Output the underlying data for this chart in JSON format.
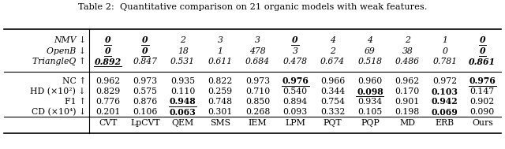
{
  "title": "Table 2:  Quantitative comparison on 21 organic models with weak features.",
  "columns": [
    "",
    "CVT",
    "LpCVT",
    "QEM",
    "SMS",
    "IEM",
    "LPM",
    "PQT",
    "PQP",
    "MD",
    "ERB",
    "Ours"
  ],
  "rows": [
    {
      "label": "CD (×10⁴) ↓",
      "values": [
        "0.201",
        "0.106",
        "0.063",
        "0.301",
        "0.268",
        "0.093",
        "0.332",
        "0.105",
        "0.198",
        "0.069",
        "0.090"
      ],
      "bold": [
        false,
        false,
        true,
        false,
        false,
        false,
        false,
        false,
        false,
        true,
        false
      ],
      "underline": [
        false,
        false,
        true,
        false,
        false,
        false,
        false,
        false,
        false,
        false,
        false
      ],
      "italic": false
    },
    {
      "label": "F1 ↑",
      "values": [
        "0.776",
        "0.876",
        "0.948",
        "0.748",
        "0.850",
        "0.894",
        "0.754",
        "0.934",
        "0.901",
        "0.942",
        "0.902"
      ],
      "bold": [
        false,
        false,
        true,
        false,
        false,
        false,
        false,
        false,
        false,
        true,
        false
      ],
      "underline": [
        false,
        false,
        true,
        false,
        false,
        false,
        false,
        false,
        false,
        false,
        false
      ],
      "italic": false
    },
    {
      "label": "HD (×10²) ↓",
      "values": [
        "0.829",
        "0.575",
        "0.110",
        "0.259",
        "0.710",
        "0.540",
        "0.344",
        "0.098",
        "0.170",
        "0.103",
        "0.147"
      ],
      "bold": [
        false,
        false,
        false,
        false,
        false,
        false,
        false,
        true,
        false,
        true,
        false
      ],
      "underline": [
        false,
        false,
        false,
        false,
        false,
        false,
        false,
        true,
        false,
        false,
        false
      ],
      "italic": false
    },
    {
      "label": "NC ↑",
      "values": [
        "0.962",
        "0.973",
        "0.935",
        "0.822",
        "0.973",
        "0.976",
        "0.966",
        "0.960",
        "0.962",
        "0.972",
        "0.976"
      ],
      "bold": [
        false,
        false,
        false,
        false,
        false,
        true,
        false,
        false,
        false,
        false,
        true
      ],
      "underline": [
        false,
        false,
        false,
        false,
        false,
        true,
        false,
        false,
        false,
        false,
        true
      ],
      "italic": false
    },
    {
      "label": "TriangleQ ↑",
      "values": [
        "0.892",
        "0.847",
        "0.531",
        "0.611",
        "0.684",
        "0.478",
        "0.674",
        "0.518",
        "0.486",
        "0.781",
        "0.861"
      ],
      "bold": [
        true,
        false,
        false,
        false,
        false,
        false,
        false,
        false,
        false,
        false,
        true
      ],
      "underline": [
        true,
        false,
        false,
        false,
        false,
        false,
        false,
        false,
        false,
        false,
        false
      ],
      "italic": true
    },
    {
      "label": "OpenB ↓",
      "values": [
        "0",
        "0",
        "18",
        "1",
        "478",
        "3",
        "2",
        "69",
        "38",
        "0",
        "0"
      ],
      "bold": [
        true,
        true,
        false,
        false,
        false,
        false,
        false,
        false,
        false,
        false,
        true
      ],
      "underline": [
        true,
        true,
        false,
        false,
        false,
        false,
        false,
        false,
        false,
        false,
        true
      ],
      "italic": true
    },
    {
      "label": "NMV ↓",
      "values": [
        "0",
        "0",
        "2",
        "3",
        "3",
        "0",
        "4",
        "4",
        "2",
        "1",
        "0"
      ],
      "bold": [
        true,
        true,
        false,
        false,
        false,
        true,
        false,
        false,
        false,
        false,
        true
      ],
      "underline": [
        true,
        true,
        false,
        false,
        false,
        true,
        false,
        false,
        false,
        false,
        true
      ],
      "italic": true
    }
  ],
  "italic_row_indices": [
    4,
    5,
    6
  ],
  "bg_color": "#ffffff",
  "text_color": "#000000",
  "font_size": 7.8
}
